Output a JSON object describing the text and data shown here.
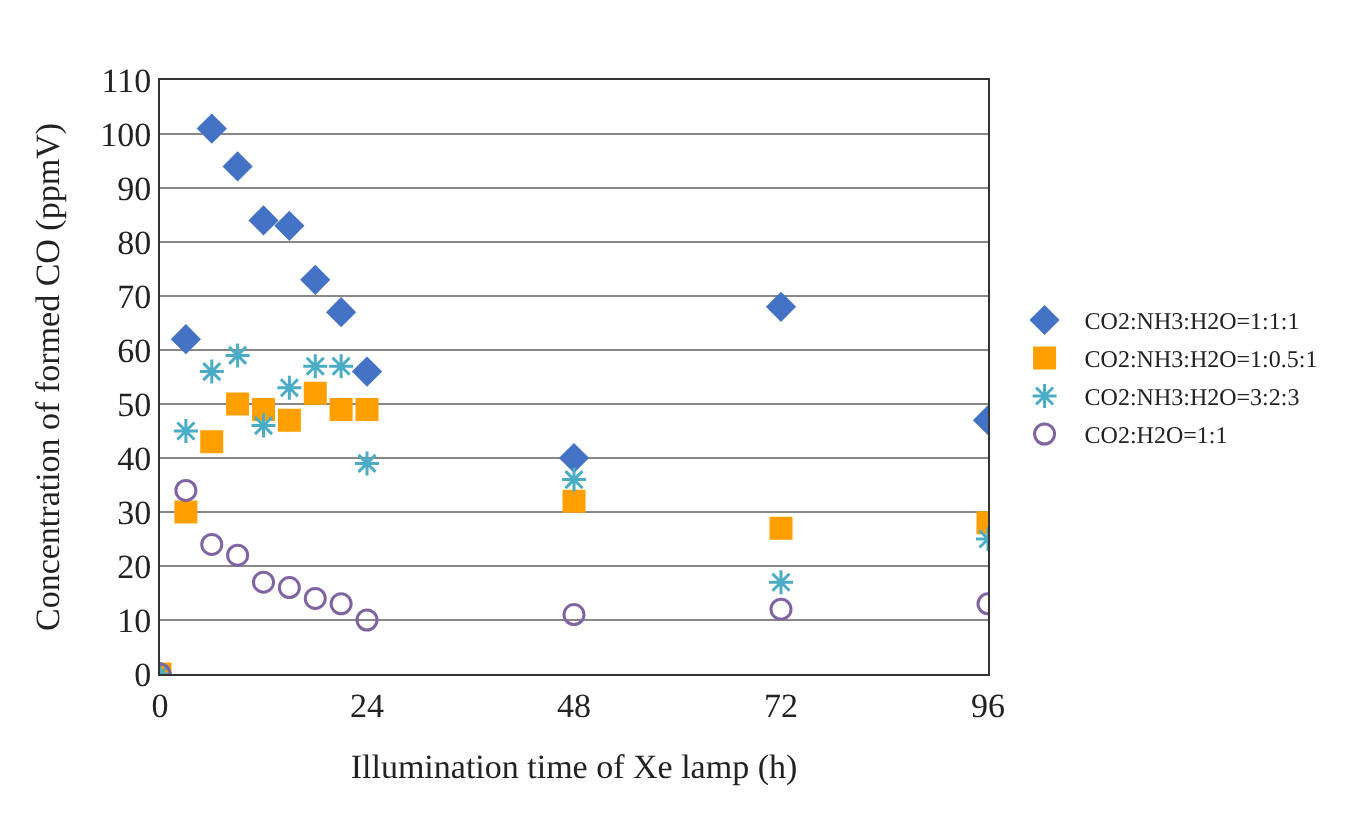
{
  "chart_data": {
    "type": "scatter",
    "xlabel": "Illumination time of Xe lamp (h)",
    "ylabel": "Concentration of formed CO (ppmV)",
    "x": [
      0,
      3,
      6,
      9,
      12,
      15,
      18,
      21,
      24,
      48,
      72,
      96
    ],
    "series": [
      {
        "name": "CO2:NH3:H2O=1:1:1",
        "color": "#4472c4",
        "marker": "diamond",
        "values": [
          null,
          62,
          101,
          94,
          84,
          83,
          73,
          67,
          56,
          40,
          68,
          47
        ]
      },
      {
        "name": "CO2:NH3:H2O=1:0.5:1",
        "color": "#ffa000",
        "marker": "square",
        "values": [
          0,
          30,
          43,
          50,
          49,
          47,
          52,
          49,
          49,
          32,
          27,
          28
        ]
      },
      {
        "name": "CO2:NH3:H2O=3:2:3",
        "color": "#4bacc6",
        "marker": "cross",
        "values": [
          0,
          45,
          56,
          59,
          46,
          53,
          57,
          57,
          39,
          36,
          17,
          25
        ]
      },
      {
        "name": "CO2:H2O=1:1",
        "color": "#8064a2",
        "marker": "circle",
        "values": [
          0,
          34,
          24,
          22,
          17,
          16,
          14,
          13,
          10,
          11,
          12,
          13
        ]
      }
    ],
    "xlim": [
      0,
      96
    ],
    "xticks": [
      0,
      24,
      48,
      72,
      96
    ],
    "ylim": [
      0,
      110
    ],
    "yticks": [
      0,
      10,
      20,
      30,
      40,
      50,
      60,
      70,
      80,
      90,
      100,
      110
    ],
    "grid": "y",
    "legend": "right"
  }
}
